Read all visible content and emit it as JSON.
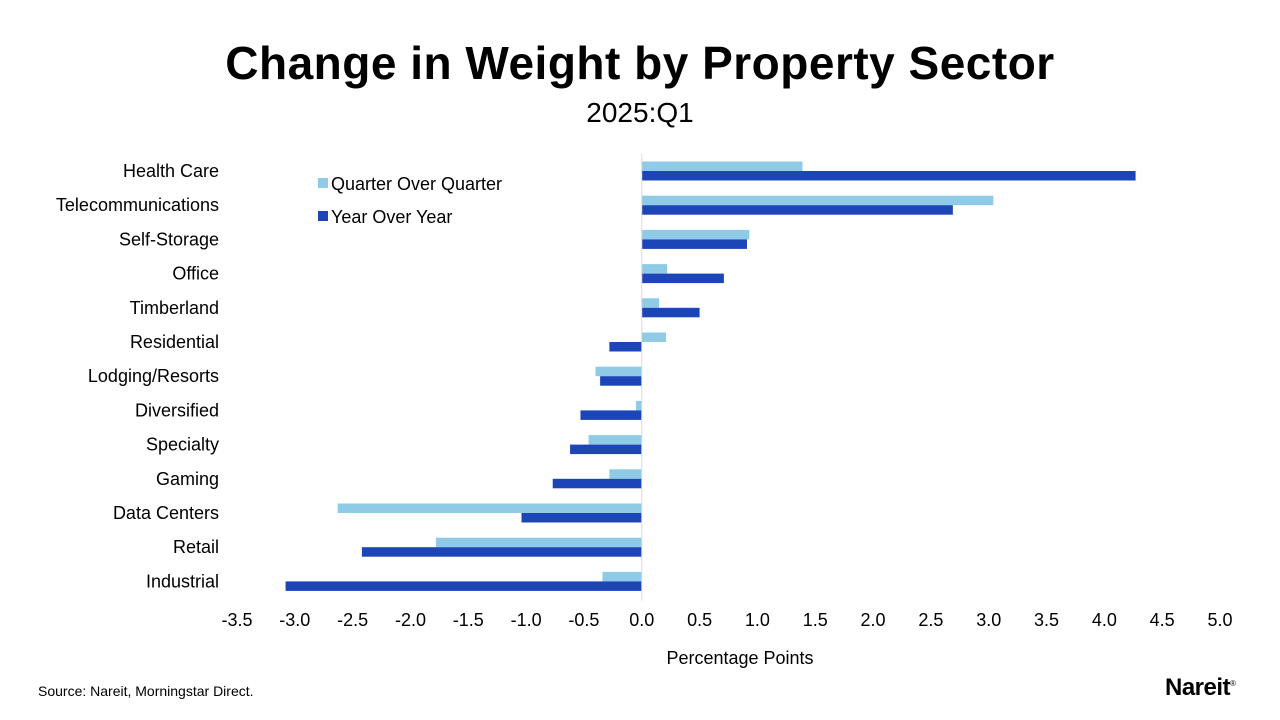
{
  "brand": "Nareit",
  "brand_mark": "®",
  "source": "Source: Nareit, Morningstar Direct.",
  "colors": {
    "qoq": "#8fcbe6",
    "yoy": "#1c45b8",
    "axis": "#d9d9d9"
  },
  "chart_data": {
    "type": "bar",
    "orientation": "horizontal",
    "title": "Change in Weight by Property Sector",
    "subtitle": "2025:Q1",
    "xlabel": "Percentage Points",
    "ylabel": "",
    "xlim": [
      -3.5,
      5.0
    ],
    "xticks": [
      "-3.5",
      "-3.0",
      "-2.5",
      "-2.0",
      "-1.5",
      "-1.0",
      "-0.5",
      "0.0",
      "0.5",
      "1.0",
      "1.5",
      "2.0",
      "2.5",
      "3.0",
      "3.5",
      "4.0",
      "4.5",
      "5.0"
    ],
    "tick_values": [
      -3.5,
      -3.0,
      -2.5,
      -2.0,
      -1.5,
      -1.0,
      -0.5,
      0.0,
      0.5,
      1.0,
      1.5,
      2.0,
      2.5,
      3.0,
      3.5,
      4.0,
      4.5,
      5.0
    ],
    "legend_position": "top-left",
    "grid": false,
    "categories": [
      "Health Care",
      "Telecommunications",
      "Self-Storage",
      "Office",
      "Timberland",
      "Residential",
      "Lodging/Resorts",
      "Diversified",
      "Specialty",
      "Gaming",
      "Data Centers",
      "Retail",
      "Industrial"
    ],
    "series": [
      {
        "name": "Quarter Over Quarter",
        "values": [
          1.39,
          3.04,
          0.93,
          0.22,
          0.15,
          0.21,
          -0.4,
          -0.05,
          -0.46,
          -0.28,
          -2.63,
          -1.78,
          -0.34
        ]
      },
      {
        "name": "Year Over Year",
        "values": [
          4.27,
          2.69,
          0.91,
          0.71,
          0.5,
          -0.28,
          -0.36,
          -0.53,
          -0.62,
          -0.77,
          -1.04,
          -2.42,
          -3.08
        ]
      }
    ]
  }
}
